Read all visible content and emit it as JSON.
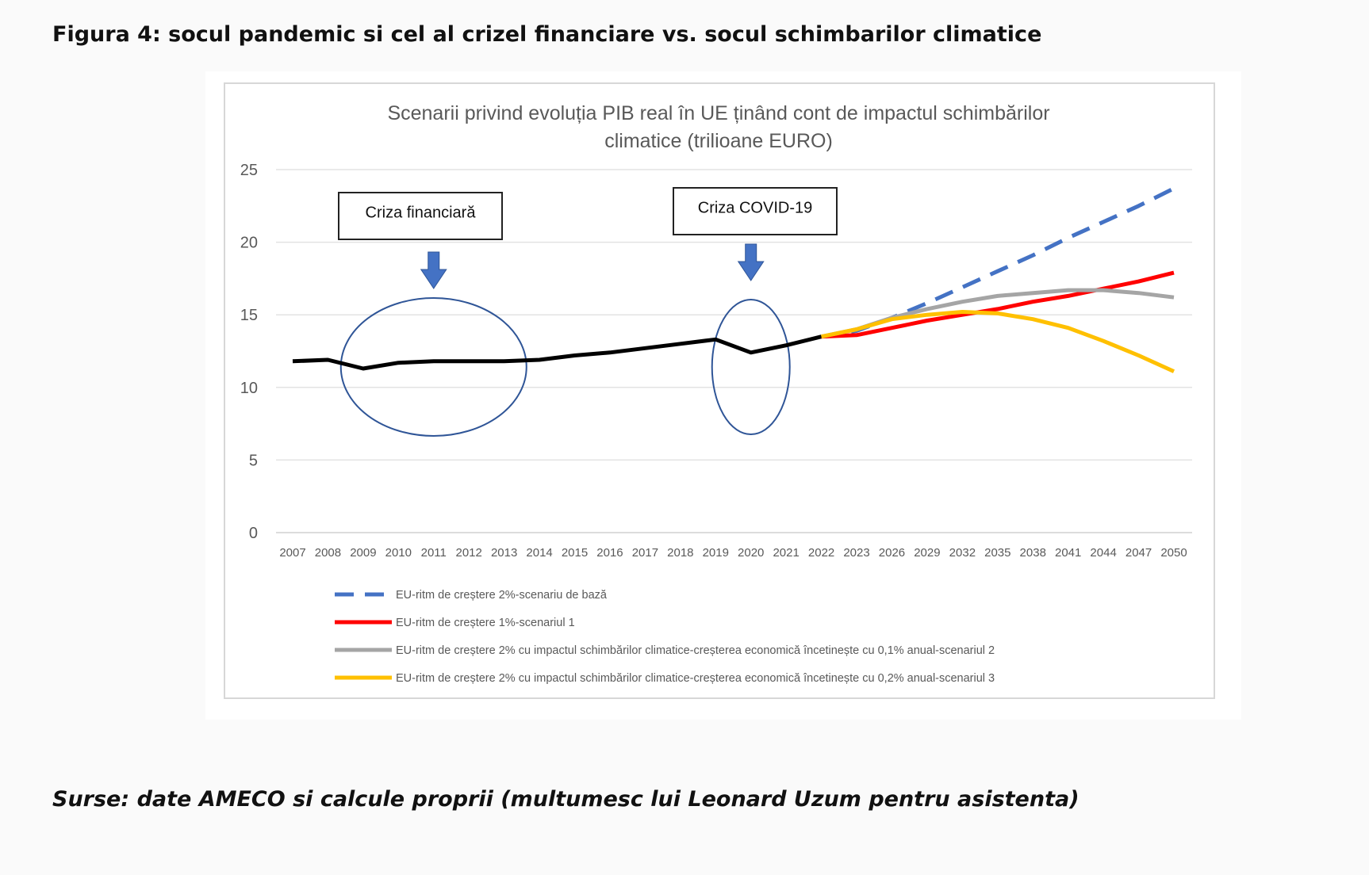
{
  "page": {
    "figure_title": "Figura 4: socul pandemic si cel al crizel financiare vs. socul schimbarilor climatice",
    "source": "Surse: date AMECO si calcule proprii (multumesc lui Leonard Uzum pentru asistenta)"
  },
  "chart_data": {
    "type": "line",
    "title_lines": [
      "Scenarii privind evoluția PIB real în UE ținând cont de impactul schimbărilor",
      "climatice (trilioane EURO)"
    ],
    "categories": [
      "2007",
      "2008",
      "2009",
      "2010",
      "2011",
      "2012",
      "2013",
      "2014",
      "2015",
      "2016",
      "2017",
      "2018",
      "2019",
      "2020",
      "2021",
      "2022",
      "2023",
      "2026",
      "2029",
      "2032",
      "2035",
      "2038",
      "2041",
      "2044",
      "2047",
      "2050"
    ],
    "ylim": [
      0,
      25
    ],
    "yticks": [
      0,
      5,
      10,
      15,
      20,
      25
    ],
    "grid": true,
    "legend_position": "bottom",
    "series": [
      {
        "color": "#000000",
        "dash": false,
        "values": [
          11.8,
          11.9,
          11.3,
          11.7,
          11.8,
          11.8,
          11.8,
          11.9,
          12.2,
          12.4,
          12.7,
          13.0,
          13.3,
          12.4,
          12.9,
          13.5,
          null,
          null,
          null,
          null,
          null,
          null,
          null,
          null,
          null,
          null
        ]
      },
      {
        "name": "EU-ritm de creștere 2%-scenariu de bază",
        "color": "#4472c4",
        "dash": true,
        "values": [
          null,
          null,
          null,
          null,
          null,
          null,
          null,
          null,
          null,
          null,
          null,
          null,
          null,
          null,
          null,
          13.5,
          13.9,
          14.8,
          15.8,
          16.9,
          18.0,
          19.1,
          20.3,
          21.4,
          22.5,
          23.7
        ]
      },
      {
        "name": "EU-ritm de creștere 1%-scenariul 1",
        "color": "#ff0000",
        "dash": false,
        "values": [
          null,
          null,
          null,
          null,
          null,
          null,
          null,
          null,
          null,
          null,
          null,
          null,
          null,
          null,
          null,
          13.5,
          13.6,
          14.1,
          14.6,
          15.0,
          15.4,
          15.9,
          16.3,
          16.8,
          17.3,
          17.9
        ]
      },
      {
        "name": "EU-ritm de creștere 2% cu impactul schimbărilor climatice-creșterea economică încetinește cu 0,1% anual-scenariul 2",
        "color": "#a5a5a5",
        "dash": false,
        "values": [
          null,
          null,
          null,
          null,
          null,
          null,
          null,
          null,
          null,
          null,
          null,
          null,
          null,
          null,
          null,
          13.5,
          14.0,
          14.8,
          15.4,
          15.9,
          16.3,
          16.5,
          16.7,
          16.7,
          16.5,
          16.2
        ]
      },
      {
        "name": "EU-ritm de creștere 2% cu impactul schimbărilor climatice-creșterea economică încetinește cu 0,2% anual-scenariul 3",
        "color": "#ffc000",
        "dash": false,
        "values": [
          null,
          null,
          null,
          null,
          null,
          null,
          null,
          null,
          null,
          null,
          null,
          null,
          null,
          null,
          null,
          13.5,
          14.0,
          14.7,
          15.0,
          15.2,
          15.1,
          14.7,
          14.1,
          13.2,
          12.2,
          11.1
        ]
      }
    ],
    "annotations": [
      {
        "label": "Criza financiară",
        "target_category": "2011"
      },
      {
        "label": "Criza COVID-19",
        "target_category": "2020"
      }
    ]
  }
}
